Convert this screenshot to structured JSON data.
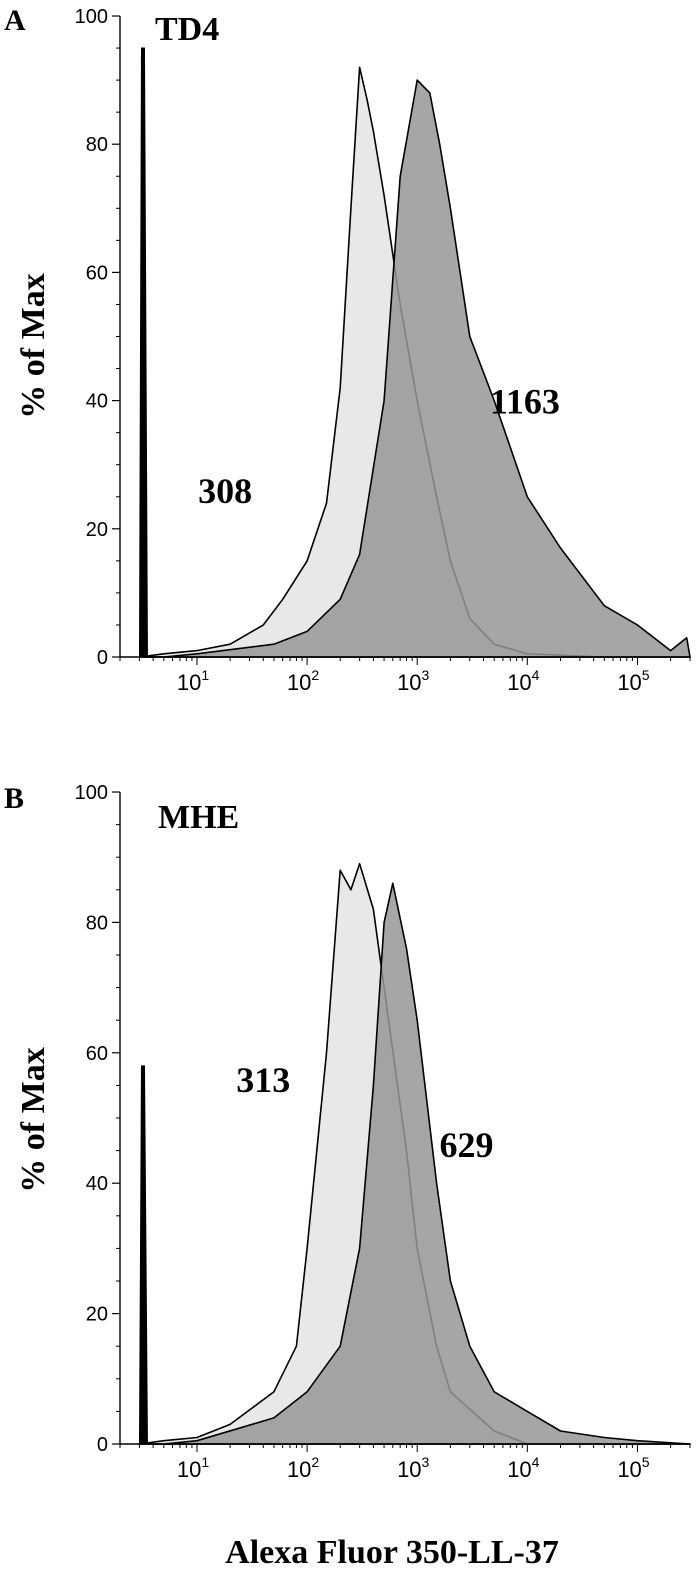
{
  "chart_data": [
    {
      "type": "area",
      "panel_letter": "A",
      "title": "TD4",
      "ylabel": "% of Max",
      "xlabel": "",
      "x_scale": "log",
      "xlim": [
        2,
        300000
      ],
      "ylim": [
        0,
        100
      ],
      "y_ticks": [
        "0",
        "20",
        "40",
        "60",
        "80",
        "100"
      ],
      "x_ticks": [
        {
          "base": "10",
          "exp": "1",
          "value": 10
        },
        {
          "base": "10",
          "exp": "2",
          "value": 100
        },
        {
          "base": "10",
          "exp": "3",
          "value": 1000
        },
        {
          "base": "10",
          "exp": "4",
          "value": 10000
        },
        {
          "base": "10",
          "exp": "5",
          "value": 100000
        }
      ],
      "annotations": [
        {
          "text": "308",
          "x": 18,
          "y": 24
        },
        {
          "text": "1163",
          "x": 9500,
          "y": 38
        }
      ],
      "series": [
        {
          "color": "#e8e8e8",
          "points": [
            [
              3,
              0
            ],
            [
              5,
              0.5
            ],
            [
              10,
              1
            ],
            [
              20,
              2
            ],
            [
              40,
              5
            ],
            [
              60,
              9
            ],
            [
              100,
              15
            ],
            [
              150,
              24
            ],
            [
              200,
              42
            ],
            [
              250,
              70
            ],
            [
              300,
              92
            ],
            [
              350,
              87
            ],
            [
              400,
              82
            ],
            [
              500,
              72
            ],
            [
              700,
              55
            ],
            [
              1000,
              40
            ],
            [
              1500,
              25
            ],
            [
              2000,
              15
            ],
            [
              3000,
              6
            ],
            [
              5000,
              2
            ],
            [
              10000,
              0.5
            ],
            [
              50000,
              0
            ],
            [
              300000,
              0
            ]
          ]
        },
        {
          "color": "#969696",
          "points": [
            [
              3,
              0
            ],
            [
              5,
              0
            ],
            [
              10,
              0.5
            ],
            [
              50,
              2
            ],
            [
              100,
              4
            ],
            [
              200,
              9
            ],
            [
              300,
              16
            ],
            [
              500,
              40
            ],
            [
              700,
              75
            ],
            [
              1000,
              90
            ],
            [
              1300,
              88
            ],
            [
              1600,
              80
            ],
            [
              2000,
              70
            ],
            [
              3000,
              50
            ],
            [
              5000,
              40
            ],
            [
              10000,
              25
            ],
            [
              20000,
              17
            ],
            [
              50000,
              8
            ],
            [
              100000,
              5
            ],
            [
              200000,
              1
            ],
            [
              280000,
              3
            ],
            [
              300000,
              0
            ]
          ]
        }
      ],
      "spike": {
        "x": 3.2,
        "y": 95
      }
    },
    {
      "type": "area",
      "panel_letter": "B",
      "title": "MHE",
      "ylabel": "% of Max",
      "xlabel": "Alexa Fluor 350-LL-37",
      "x_scale": "log",
      "xlim": [
        2,
        300000
      ],
      "ylim": [
        0,
        100
      ],
      "y_ticks": [
        "0",
        "20",
        "40",
        "60",
        "80",
        "100"
      ],
      "x_ticks": [
        {
          "base": "10",
          "exp": "1",
          "value": 10
        },
        {
          "base": "10",
          "exp": "2",
          "value": 100
        },
        {
          "base": "10",
          "exp": "3",
          "value": 1000
        },
        {
          "base": "10",
          "exp": "4",
          "value": 10000
        },
        {
          "base": "10",
          "exp": "5",
          "value": 100000
        }
      ],
      "annotations": [
        {
          "text": "313",
          "x": 40,
          "y": 54
        },
        {
          "text": "629",
          "x": 2800,
          "y": 44
        }
      ],
      "series": [
        {
          "color": "#e8e8e8",
          "points": [
            [
              3,
              0
            ],
            [
              5,
              0.5
            ],
            [
              10,
              1
            ],
            [
              20,
              3
            ],
            [
              50,
              8
            ],
            [
              80,
              15
            ],
            [
              100,
              30
            ],
            [
              150,
              60
            ],
            [
              200,
              88
            ],
            [
              250,
              85
            ],
            [
              300,
              89
            ],
            [
              400,
              82
            ],
            [
              500,
              70
            ],
            [
              800,
              45
            ],
            [
              1000,
              30
            ],
            [
              1500,
              15
            ],
            [
              2000,
              8
            ],
            [
              5000,
              2
            ],
            [
              10000,
              0
            ],
            [
              300000,
              0
            ]
          ]
        },
        {
          "color": "#969696",
          "points": [
            [
              3,
              0
            ],
            [
              5,
              0
            ],
            [
              10,
              0.5
            ],
            [
              50,
              4
            ],
            [
              100,
              8
            ],
            [
              200,
              15
            ],
            [
              300,
              30
            ],
            [
              400,
              55
            ],
            [
              500,
              80
            ],
            [
              600,
              86
            ],
            [
              800,
              76
            ],
            [
              1000,
              65
            ],
            [
              1500,
              40
            ],
            [
              2000,
              25
            ],
            [
              3000,
              15
            ],
            [
              5000,
              8
            ],
            [
              10000,
              5
            ],
            [
              20000,
              2
            ],
            [
              50000,
              1
            ],
            [
              100000,
              0.5
            ],
            [
              300000,
              0
            ]
          ]
        }
      ],
      "spike": {
        "x": 3.2,
        "y": 58
      }
    }
  ]
}
